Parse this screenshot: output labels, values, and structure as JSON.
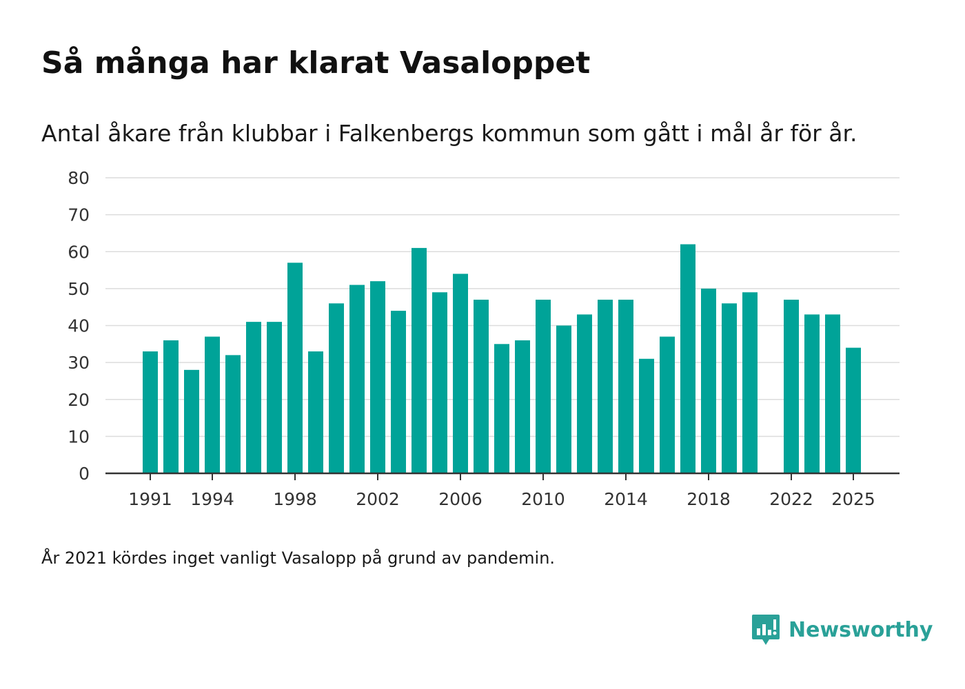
{
  "chart_data": {
    "type": "bar",
    "title": "Så många har klarat Vasaloppet",
    "subtitle": "Antal åkare från klubbar i Falkenbergs kommun som gått i mål år för år.",
    "xlabel": "",
    "ylabel": "",
    "ylim": [
      0,
      80
    ],
    "yticks": [
      0,
      10,
      20,
      30,
      40,
      50,
      60,
      70,
      80
    ],
    "xtick_labels": [
      "1991",
      "1994",
      "1998",
      "2002",
      "2006",
      "2010",
      "2014",
      "2018",
      "2022",
      "2025"
    ],
    "categories": [
      "1991",
      "1992",
      "1993",
      "1994",
      "1995",
      "1996",
      "1997",
      "1998",
      "1999",
      "2000",
      "2001",
      "2002",
      "2003",
      "2004",
      "2005",
      "2006",
      "2007",
      "2008",
      "2009",
      "2010",
      "2011",
      "2012",
      "2013",
      "2014",
      "2015",
      "2016",
      "2017",
      "2018",
      "2019",
      "2020",
      "2021",
      "2022",
      "2023",
      "2024",
      "2025"
    ],
    "values": [
      33,
      36,
      28,
      37,
      32,
      41,
      41,
      57,
      33,
      46,
      51,
      52,
      44,
      61,
      49,
      54,
      47,
      35,
      36,
      47,
      40,
      43,
      47,
      47,
      31,
      37,
      62,
      50,
      46,
      49,
      null,
      47,
      43,
      43,
      34
    ],
    "grid": true,
    "bar_color": "#00a398"
  },
  "footnote": "År 2021 kördes inget vanligt Vasalopp på grund av pandemin.",
  "brand": {
    "name": "Newsworthy",
    "color": "#2aa198"
  }
}
